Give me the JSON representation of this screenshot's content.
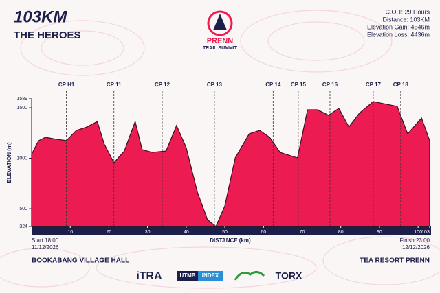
{
  "chart_data": {
    "type": "area",
    "title": "103KM",
    "subtitle": "THE HEROES",
    "logo": {
      "name": "PRENN",
      "tagline": "TRAIL SUMMIT"
    },
    "stats": [
      "C.O.T: 29 Hours",
      "Distance: 103KM",
      "Elevation Gain: 4546m",
      "Elevation Loss: 4436m"
    ],
    "y_label": "ELEVATION (m)",
    "x_label": "DISTANCE (km)",
    "start": {
      "time": "Start 18:00",
      "date": "11/12/2026",
      "place": "BOOKABANG VILLAGE HALL"
    },
    "finish": {
      "time": "Finish 23:00",
      "date": "12/12/2026",
      "place": "TEA RESORT PRENN"
    },
    "sponsors": [
      "iTRA",
      "UTMB",
      "INDEX",
      "TORX"
    ],
    "color": "#ec1c52",
    "x": [
      0,
      1.8,
      3.6,
      6.2,
      9,
      11.6,
      14.3,
      17,
      18.8,
      21.3,
      24,
      26.8,
      28.6,
      31.2,
      34.8,
      37.5,
      40,
      42.9,
      45.5,
      47.7,
      50,
      52.7,
      56.3,
      59,
      61.6,
      64.3,
      68.8,
      71.4,
      74,
      76.8,
      79.5,
      82.1,
      84.8,
      88.4,
      92,
      94.6,
      97.3,
      100.9,
      103
    ],
    "values": [
      1040,
      1174,
      1208,
      1190,
      1175,
      1276,
      1310,
      1364,
      1140,
      956,
      1072,
      1364,
      1086,
      1058,
      1072,
      1324,
      1106,
      664,
      392,
      324,
      528,
      1004,
      1242,
      1276,
      1208,
      1058,
      1004,
      1480,
      1480,
      1426,
      1494,
      1310,
      1446,
      1562,
      1534,
      1514,
      1242,
      1398,
      1174
    ],
    "xlim": [
      0,
      103
    ],
    "xticks": [
      10,
      20,
      30,
      40,
      50,
      60,
      70,
      80,
      90,
      100,
      103
    ],
    "ylim": [
      324,
      1589
    ],
    "yticks": [
      324,
      500,
      1000,
      1500,
      1589
    ],
    "checkpoints": [
      {
        "label": "CP H1",
        "x": 9
      },
      {
        "label": "CP 11",
        "x": 21.3
      },
      {
        "label": "CP 12",
        "x": 33.8
      },
      {
        "label": "CP 13",
        "x": 47.3
      },
      {
        "label": "CP 14",
        "x": 62.5
      },
      {
        "label": "CP 15",
        "x": 69
      },
      {
        "label": "CP 16",
        "x": 77.2
      },
      {
        "label": "CP 17",
        "x": 88.4
      },
      {
        "label": "CP 18",
        "x": 95.5
      }
    ]
  }
}
